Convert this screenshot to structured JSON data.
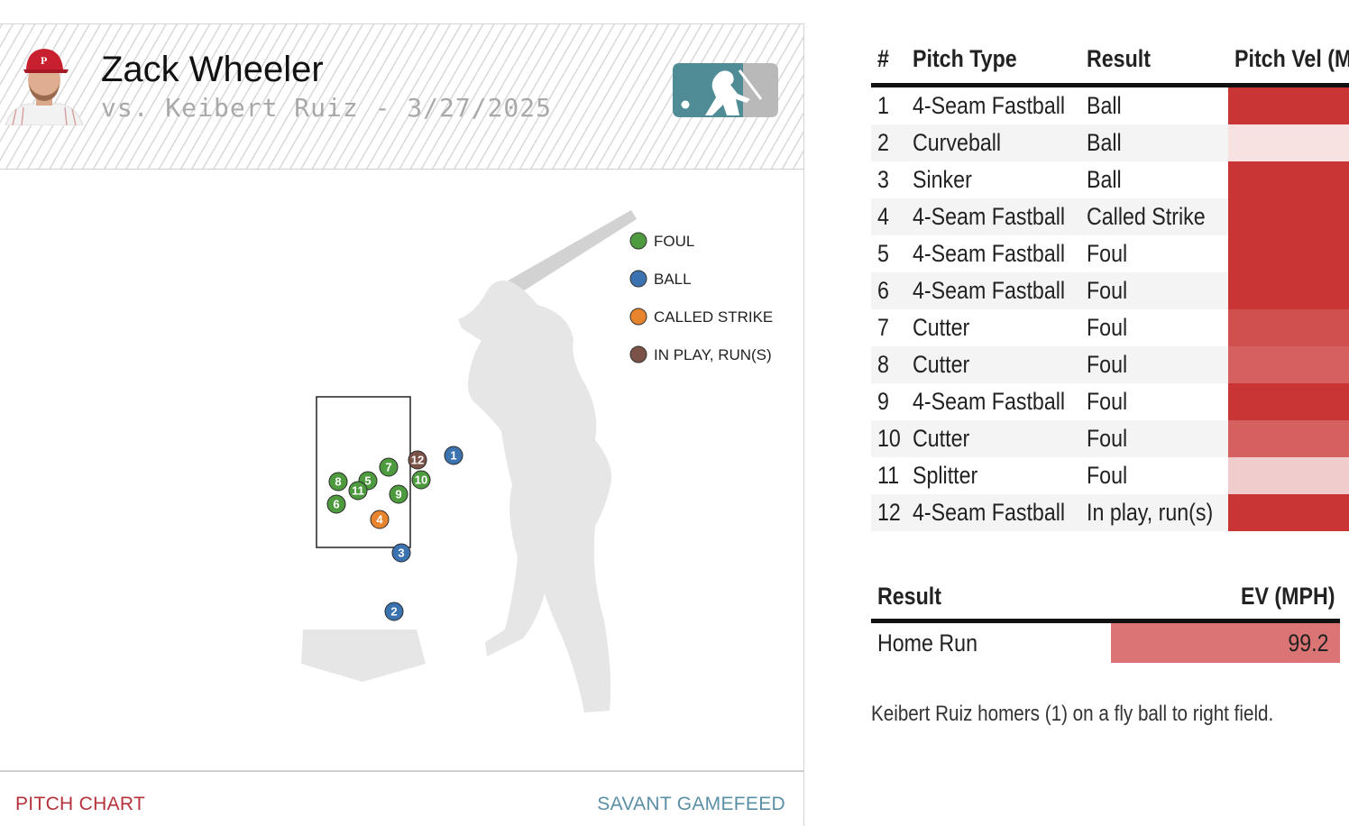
{
  "player": {
    "name": "Zack Wheeler",
    "matchup": "vs. Keibert Ruiz - 3/27/2025"
  },
  "footer": {
    "left_link": "PITCH CHART",
    "right_link": "SAVANT GAMEFEED"
  },
  "legend": [
    {
      "label": "FOUL",
      "color": "#4e9a3e"
    },
    {
      "label": "BALL",
      "color": "#3b73b1"
    },
    {
      "label": "CALLED STRIKE",
      "color": "#e8832e"
    },
    {
      "label": "IN PLAY, RUN(S)",
      "color": "#7b5247"
    }
  ],
  "pitch_markers": [
    {
      "n": "1",
      "kind": "ball"
    },
    {
      "n": "2",
      "kind": "ball"
    },
    {
      "n": "3",
      "kind": "ball"
    },
    {
      "n": "4",
      "kind": "called"
    },
    {
      "n": "5",
      "kind": "foul"
    },
    {
      "n": "6",
      "kind": "foul"
    },
    {
      "n": "7",
      "kind": "foul"
    },
    {
      "n": "8",
      "kind": "foul"
    },
    {
      "n": "9",
      "kind": "foul"
    },
    {
      "n": "10",
      "kind": "foul"
    },
    {
      "n": "11",
      "kind": "foul"
    },
    {
      "n": "12",
      "kind": "inplay"
    }
  ],
  "table": {
    "headers": {
      "num": "#",
      "type": "Pitch Type",
      "result": "Result",
      "vel": "Pitch Vel (MPH)"
    },
    "rows": [
      {
        "num": "1",
        "type": "4-Seam Fastball",
        "result": "Ball",
        "vel_color": "#c93434"
      },
      {
        "num": "2",
        "type": "Curveball",
        "result": "Ball",
        "vel_color": "#f7e1e1"
      },
      {
        "num": "3",
        "type": "Sinker",
        "result": "Ball",
        "vel_color": "#c93434"
      },
      {
        "num": "4",
        "type": "4-Seam Fastball",
        "result": "Called Strike",
        "vel_color": "#c93434"
      },
      {
        "num": "5",
        "type": "4-Seam Fastball",
        "result": "Foul",
        "vel_color": "#c93434"
      },
      {
        "num": "6",
        "type": "4-Seam Fastball",
        "result": "Foul",
        "vel_color": "#c93434"
      },
      {
        "num": "7",
        "type": "Cutter",
        "result": "Foul",
        "vel_color": "#d05050"
      },
      {
        "num": "8",
        "type": "Cutter",
        "result": "Foul",
        "vel_color": "#d46060"
      },
      {
        "num": "9",
        "type": "4-Seam Fastball",
        "result": "Foul",
        "vel_color": "#c93434"
      },
      {
        "num": "10",
        "type": "Cutter",
        "result": "Foul",
        "vel_color": "#d46060"
      },
      {
        "num": "11",
        "type": "Splitter",
        "result": "Foul",
        "vel_color": "#f0cccc"
      },
      {
        "num": "12",
        "type": "4-Seam Fastball",
        "result": "In play, run(s)",
        "vel_color": "#c93434"
      }
    ]
  },
  "result": {
    "header": "Result",
    "ev_header": "EV (MPH)",
    "value": "Home Run",
    "ev": "99.2"
  },
  "description": "Keibert Ruiz homers (1) on a fly ball to right field."
}
